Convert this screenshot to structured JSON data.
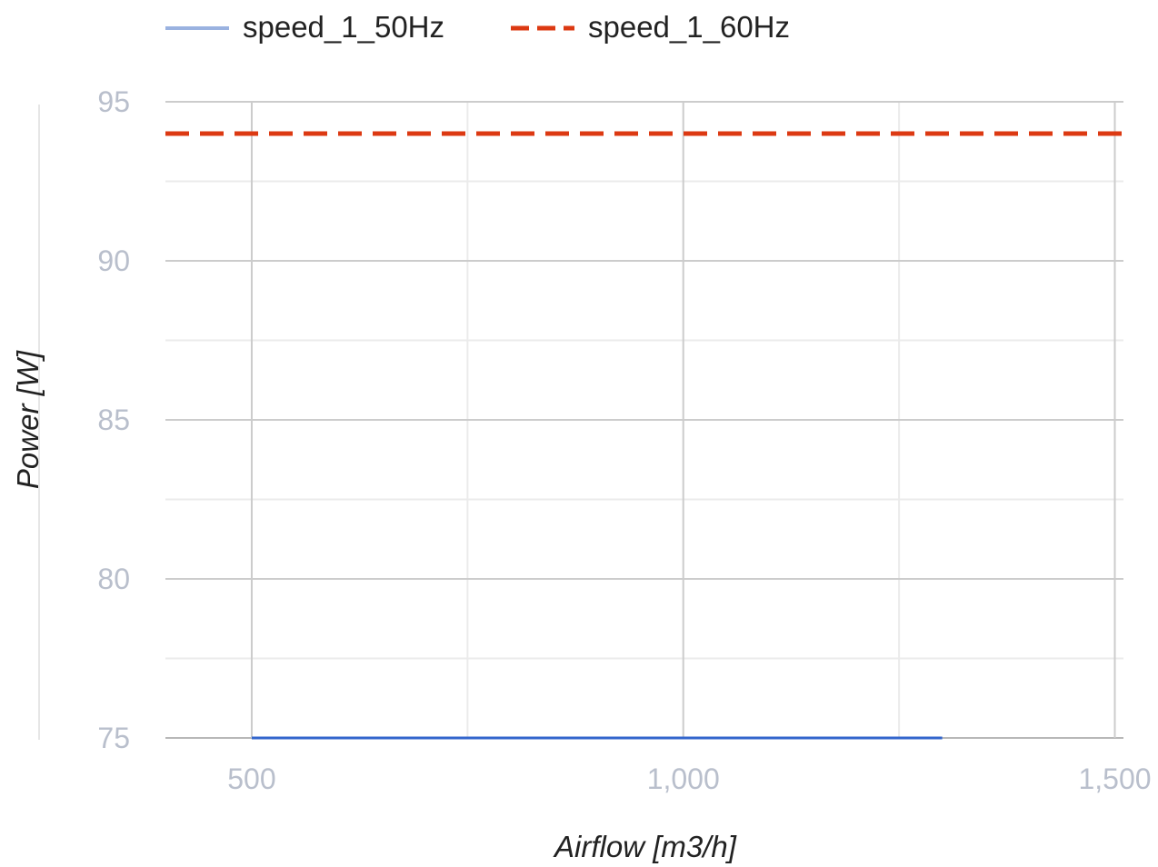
{
  "chart_data": {
    "type": "line",
    "title": "",
    "xlabel": "Airflow [m3/h]",
    "ylabel": "Power [W]",
    "xlim": [
      400,
      1510
    ],
    "ylim": [
      75,
      95
    ],
    "x_ticks": [
      {
        "value": 500,
        "label": "500"
      },
      {
        "value": 1000,
        "label": "1,000"
      },
      {
        "value": 1500,
        "label": "1,500"
      }
    ],
    "y_ticks": [
      {
        "value": 95,
        "label": "95"
      },
      {
        "value": 90,
        "label": "90"
      },
      {
        "value": 85,
        "label": "85"
      },
      {
        "value": 80,
        "label": "80"
      },
      {
        "value": 75,
        "label": "75"
      }
    ],
    "grid": true,
    "minor_grid": true,
    "legend_position": "top-left",
    "series": [
      {
        "name": "speed_1_50Hz",
        "color": "#3366cc",
        "legend_color": "#9ab2e0",
        "dash": "solid",
        "points": [
          [
            500,
            75
          ],
          [
            1300,
            75
          ]
        ]
      },
      {
        "name": "speed_1_60Hz",
        "color": "#dc3912",
        "legend_color": "#dc3912",
        "dash": "dashed",
        "points": [
          [
            400,
            94
          ],
          [
            1510,
            94
          ]
        ]
      }
    ]
  }
}
